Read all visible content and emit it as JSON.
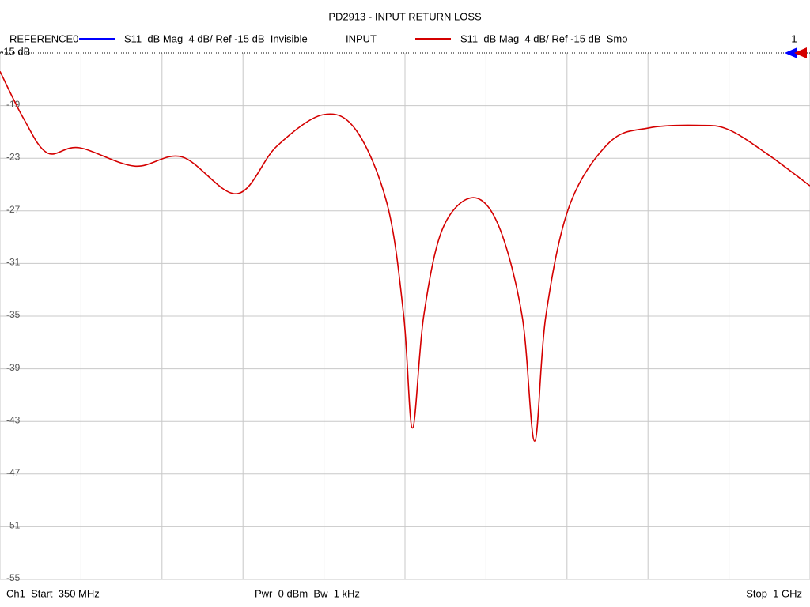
{
  "chart_data": {
    "type": "line",
    "title": "PD2913 - INPUT RETURN LOSS",
    "x": [
      350,
      369,
      388,
      413.5,
      458,
      496,
      540,
      572,
      609,
      636,
      661,
      674,
      681,
      690,
      705,
      729,
      750,
      769,
      779,
      788,
      807,
      839,
      870.5,
      909,
      934,
      966,
      1000
    ],
    "series": [
      {
        "name": "REFERENCE0",
        "color": "#0000ff",
        "description": "S11  dB Mag  4 dB/ Ref -15 dB  Invisible",
        "visible": false
      },
      {
        "name": "INPUT",
        "color": "#d40000",
        "description": "S11  dB Mag  4 dB/ Ref -15 dB  Smo",
        "visible": true,
        "values": [
          -16.4,
          -20.0,
          -22.6,
          -22.2,
          -23.6,
          -22.9,
          -25.7,
          -22.1,
          -19.7,
          -20.9,
          -26.6,
          -35.0,
          -43.5,
          -35.0,
          -28.4,
          -26.0,
          -28.1,
          -35.0,
          -44.5,
          -35.0,
          -26.6,
          -21.8,
          -20.7,
          -20.5,
          -20.8,
          -22.7,
          -25.1
        ]
      }
    ],
    "xlim": [
      350,
      1000
    ],
    "xticks": [
      350,
      415,
      480,
      545,
      610,
      675,
      740,
      805,
      870,
      935,
      1000
    ],
    "ylim": [
      -55,
      -15
    ],
    "yticks": [
      -19,
      -23,
      -27,
      -31,
      -35,
      -39,
      -43,
      -47,
      -51,
      -55
    ],
    "grid": true,
    "reference_level": -15,
    "reference_label": "-15 dB",
    "marker_label": "1",
    "start_label": "Ch1  Start  350 MHz",
    "power_label": "Pwr  0 dBm  Bw  1 kHz",
    "stop_label": "Stop  1 GHz"
  }
}
